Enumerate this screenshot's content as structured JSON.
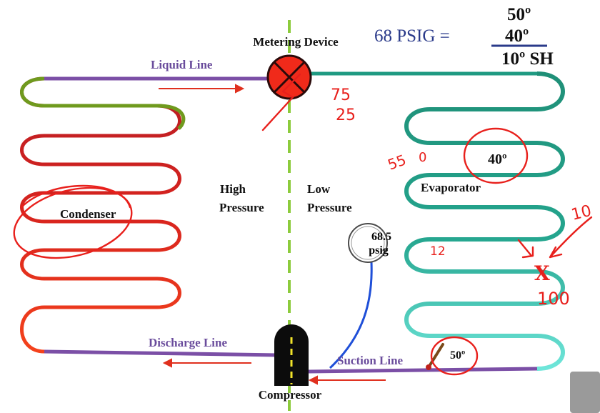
{
  "labels": {
    "metering_device": "Metering Device",
    "liquid_line": "Liquid Line",
    "discharge_line": "Discharge Line",
    "suction_line": "Suction Line",
    "compressor": "Compressor",
    "condenser": "Condenser",
    "evaporator": "Evaporator",
    "high_1": "High",
    "high_2": "Pressure",
    "low_1": "Low",
    "low_2": "Pressure",
    "evap_temp": "40º",
    "suction_temp": "50º",
    "gauge_value": "68.5",
    "gauge_unit": "psig"
  },
  "equation": {
    "pressure": "68 PSIG =",
    "top": "50º",
    "middle": "40º",
    "result": "10º SH"
  },
  "annotations": {
    "num_75": "75",
    "num_25": "25",
    "num_55": "55",
    "num_0": "0",
    "num_12": "12",
    "num_10": "10",
    "x_mark": "X",
    "x_note": "100"
  },
  "colors": {
    "purple_line": "#7b4fa6",
    "condenser_green": "#6f9a1e",
    "condenser_red": "#d4271f",
    "evaporator_teal": "#1f9a82",
    "evaporator_light": "#5fe0d2",
    "metering_red": "#f02a1a",
    "center_dash": "#8ccb3c",
    "gauge_blue": "#1f4fd8",
    "marker_red": "#e8201c"
  }
}
